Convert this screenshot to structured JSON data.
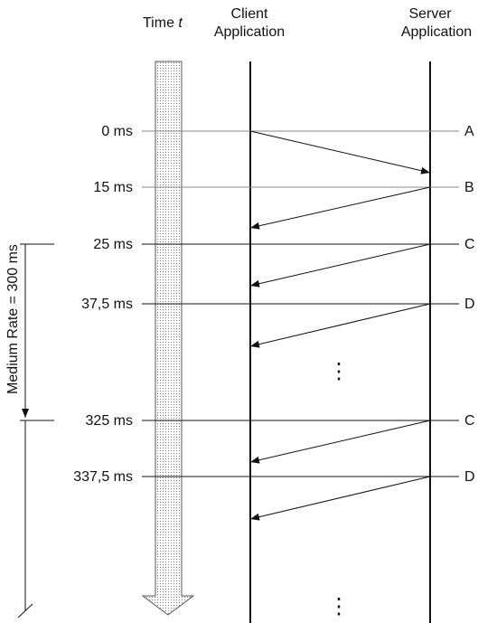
{
  "header": {
    "time_label": "Time",
    "time_var": "t",
    "client": [
      "Client",
      "Application"
    ],
    "server": [
      "Server",
      "Application"
    ]
  },
  "rows": [
    {
      "time": "0 ms",
      "label": "A"
    },
    {
      "time": "15 ms",
      "label": "B"
    },
    {
      "time": "25 ms",
      "label": "C"
    },
    {
      "time": "37,5 ms",
      "label": "D"
    },
    {
      "time": "325 ms",
      "label": "C"
    },
    {
      "time": "337,5 ms",
      "label": "D"
    }
  ],
  "medium_rate": "Medium Rate = 300 ms",
  "ellipsis": "⋮"
}
